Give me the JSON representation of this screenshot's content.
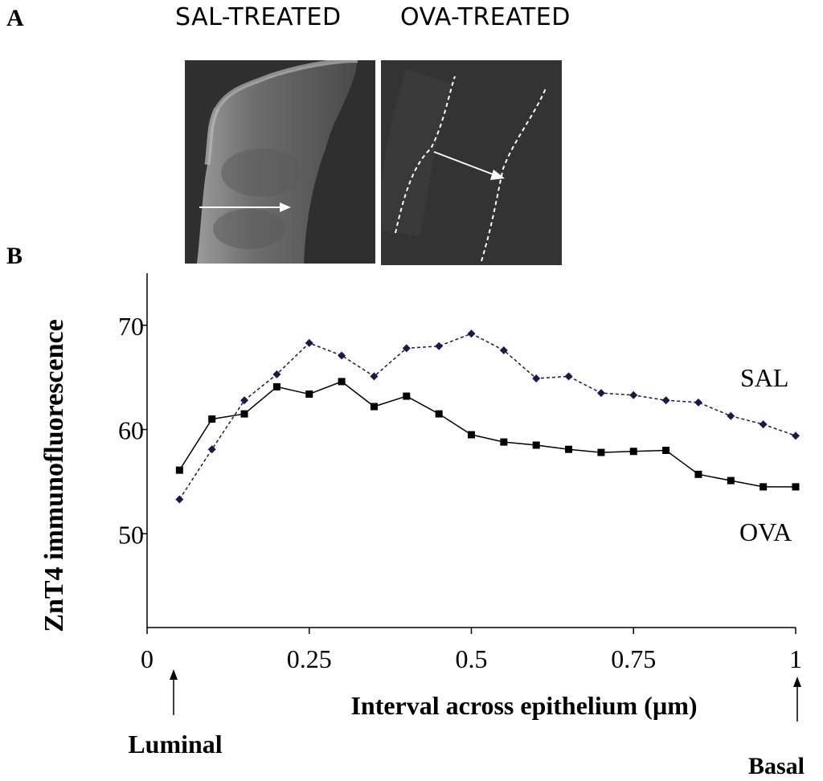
{
  "panel_a": {
    "letter": "A",
    "left_title": "SAL-TREATED",
    "right_title": "OVA-TREATED",
    "left_image": "SAL-treated epithelium micrograph",
    "right_image": "OVA-treated epithelium micrograph"
  },
  "panel_b": {
    "letter": "B"
  },
  "chart_data": {
    "type": "line",
    "title": "",
    "xlabel": "Interval across epithelium (µm)",
    "ylabel": "ZnT4 immunofluorescence",
    "xlim": [
      0,
      1
    ],
    "ylim": [
      41,
      75
    ],
    "xticks": [
      0,
      0.25,
      0.5,
      0.75,
      1
    ],
    "xtick_labels": [
      "0",
      "0.25",
      "0.5",
      "0.75",
      "1"
    ],
    "yticks": [
      50,
      60,
      70
    ],
    "ytick_labels": [
      "50",
      "60",
      "70"
    ],
    "x": [
      0.05,
      0.1,
      0.15,
      0.2,
      0.25,
      0.3,
      0.35,
      0.4,
      0.45,
      0.5,
      0.55,
      0.6,
      0.65,
      0.7,
      0.75,
      0.8,
      0.85,
      0.9,
      0.95,
      1.0
    ],
    "series": [
      {
        "name": "SAL",
        "style": "dashed",
        "marker": "diamond",
        "color": "#1a1a4a",
        "values": [
          53.3,
          58.1,
          62.8,
          65.3,
          68.3,
          67.1,
          65.1,
          67.8,
          68.0,
          69.2,
          67.6,
          64.9,
          65.1,
          63.5,
          63.3,
          62.8,
          62.6,
          61.3,
          60.5,
          59.4
        ]
      },
      {
        "name": "OVA",
        "style": "solid",
        "marker": "square",
        "color": "#000000",
        "values": [
          56.1,
          61.0,
          61.5,
          64.1,
          63.4,
          64.6,
          62.2,
          63.2,
          61.5,
          59.5,
          58.8,
          58.5,
          58.1,
          57.8,
          57.9,
          58.0,
          55.7,
          55.1,
          54.5,
          54.5
        ]
      }
    ],
    "annotations": {
      "sal_label": "SAL",
      "ova_label": "OVA",
      "luminal": "Luminal",
      "basal": "Basal"
    }
  }
}
